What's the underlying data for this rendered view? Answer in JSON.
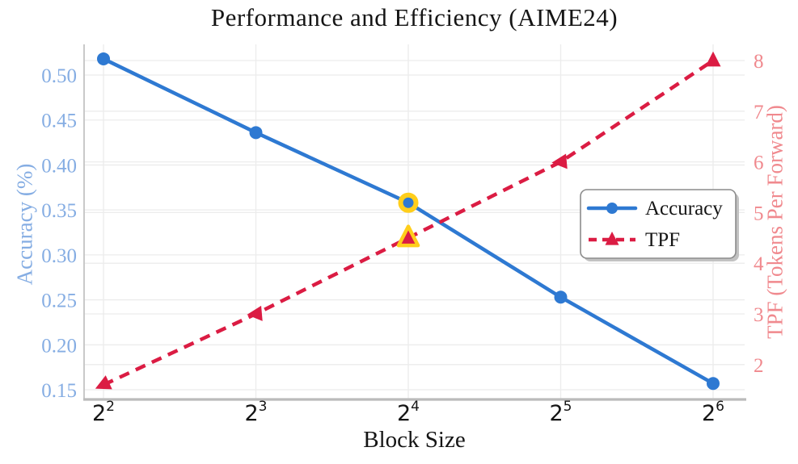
{
  "page": {
    "background": "#FFFFFF"
  },
  "chart_data": {
    "type": "line",
    "title": "Performance and Efficiency (AIME24)",
    "xlabel": "Block Size",
    "x_tick_labels": [
      "2^2",
      "2^3",
      "2^4",
      "2^5",
      "2^6"
    ],
    "grid": true,
    "series": [
      {
        "name": "Accuracy",
        "axis": "left",
        "color": "#2E79D2",
        "line_style": "solid",
        "marker": "circle",
        "values": [
          0.518,
          0.436,
          0.358,
          0.253,
          0.157
        ]
      },
      {
        "name": "TPF",
        "axis": "right",
        "color": "#DB1C43",
        "line_style": "dashed",
        "marker": "triangle",
        "values": [
          1.6,
          3.0,
          4.5,
          6.0,
          8.0
        ]
      }
    ],
    "highlight": {
      "x_label": "2^4",
      "x_index": 2,
      "ring_color": "#FFCE1B",
      "accuracy_value": 0.358,
      "tpf_value": 4.5
    },
    "left_axis": {
      "label": "Accuracy (%)",
      "color": "#85ADE3",
      "ticks": [
        0.5,
        0.45,
        0.4,
        0.35,
        0.3,
        0.25,
        0.2,
        0.15
      ],
      "ylim": [
        0.139,
        0.536
      ]
    },
    "right_axis": {
      "label": "TPF (Tokens Per Forward)",
      "color": "#F0898E",
      "ticks": [
        8,
        7,
        6,
        5,
        4,
        3,
        2
      ],
      "ylim": [
        1.31,
        8.32
      ]
    },
    "legend": {
      "items": [
        "Accuracy",
        "TPF"
      ],
      "position": "center right"
    },
    "style_colors": {
      "grid": "#ECECEC",
      "left_spine": "#C9C9C9",
      "bottom_spine": "#BBBBBB",
      "legend_border": "#8C8C8C",
      "legend_shadow": "#C2C2C2",
      "text": "#151515"
    }
  }
}
